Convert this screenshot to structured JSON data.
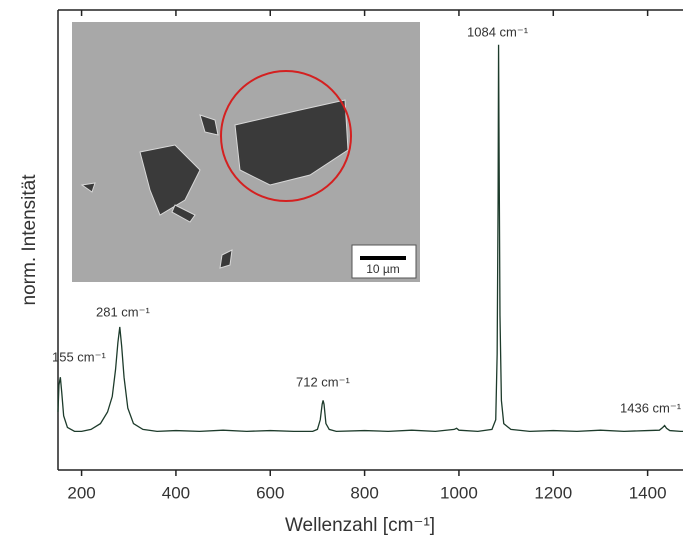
{
  "chart_data": {
    "type": "line",
    "xlabel": "Wellenzahl [cm⁻¹]",
    "ylabel": "norm. Intensität",
    "xlim": [
      150,
      1475
    ],
    "xticks": [
      200,
      400,
      600,
      800,
      1000,
      1200,
      1400
    ],
    "ylim": [
      -0.1,
      1.09
    ],
    "series": [
      {
        "color": "#1d3b2b",
        "x": [
          150,
          152,
          155,
          158,
          162,
          170,
          185,
          200,
          220,
          240,
          255,
          265,
          272,
          277,
          281,
          285,
          290,
          298,
          310,
          330,
          360,
          400,
          450,
          500,
          550,
          600,
          650,
          690,
          700,
          706,
          710,
          712,
          714,
          718,
          725,
          740,
          800,
          850,
          900,
          950,
          990,
          995,
          1000,
          1040,
          1070,
          1078,
          1081,
          1083,
          1084,
          1085,
          1087,
          1090,
          1095,
          1110,
          1150,
          1200,
          1250,
          1300,
          1350,
          1400,
          1425,
          1432,
          1436,
          1440,
          1447,
          1470,
          1475
        ],
        "values": [
          0.05,
          0.12,
          0.14,
          0.1,
          0.04,
          0.01,
          0.0,
          0.0,
          0.005,
          0.02,
          0.05,
          0.09,
          0.16,
          0.23,
          0.27,
          0.22,
          0.14,
          0.06,
          0.02,
          0.005,
          0.0,
          0.002,
          0.0,
          0.003,
          0.0,
          0.002,
          0.0,
          0.0,
          0.005,
          0.03,
          0.07,
          0.08,
          0.07,
          0.02,
          0.005,
          0.0,
          0.002,
          0.0,
          0.003,
          0.0,
          0.005,
          0.008,
          0.003,
          0.0,
          0.005,
          0.03,
          0.2,
          0.6,
          1.0,
          0.75,
          0.3,
          0.08,
          0.02,
          0.005,
          0.0,
          0.002,
          0.0,
          0.003,
          0.0,
          0.002,
          0.003,
          0.01,
          0.015,
          0.008,
          0.002,
          0.0,
          0.0
        ]
      }
    ],
    "annotations": [
      "155 cm⁻¹",
      "281 cm⁻¹",
      "712 cm⁻¹",
      "1084 cm⁻¹",
      "1436 cm⁻¹"
    ],
    "inset": {
      "scale_bar": "10 µm"
    }
  }
}
